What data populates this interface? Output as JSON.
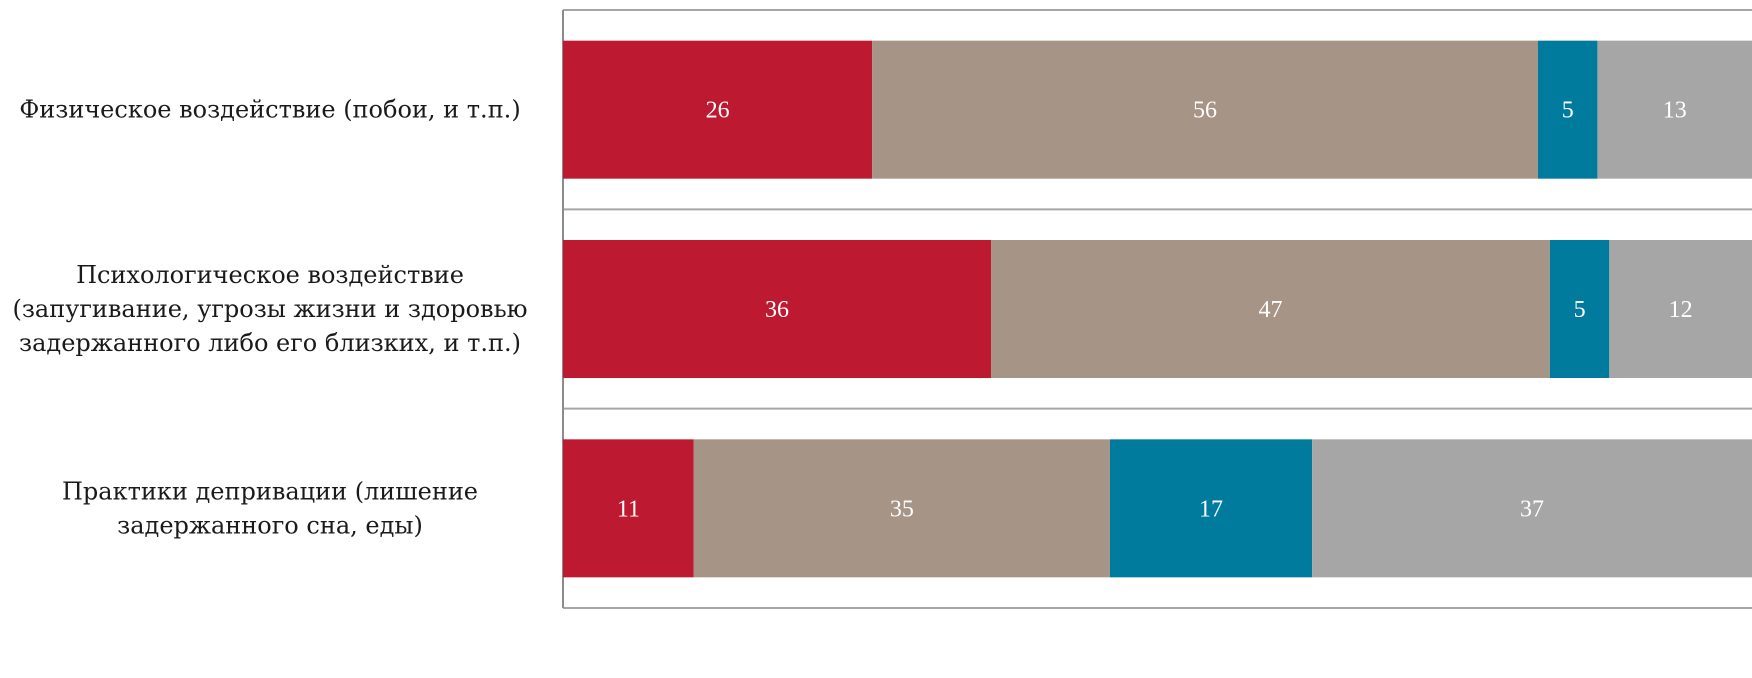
{
  "chart_data": {
    "type": "bar",
    "orientation": "horizontal",
    "stacked": true,
    "normalized_to": 100,
    "categories": [
      [
        "Физическое воздействие (побои, и т.п.)"
      ],
      [
        "Психологическое воздействие",
        "(запугивание, угрозы жизни и здоровью",
        "задержанного либо его близких, и т.п.)"
      ],
      [
        "Практики депривации (лишение",
        "задержанного сна, еды)"
      ]
    ],
    "series": [
      {
        "color": "#bd1a31",
        "values": [
          26,
          36,
          11
        ]
      },
      {
        "color": "#a69486",
        "values": [
          56,
          47,
          35
        ]
      },
      {
        "color": "#007b9d",
        "values": [
          5,
          5,
          17
        ]
      },
      {
        "color": "#a6a6a6",
        "values": [
          13,
          12,
          37
        ]
      }
    ],
    "xlim": [
      0,
      100
    ],
    "legend": "none",
    "grid": "category separators"
  }
}
